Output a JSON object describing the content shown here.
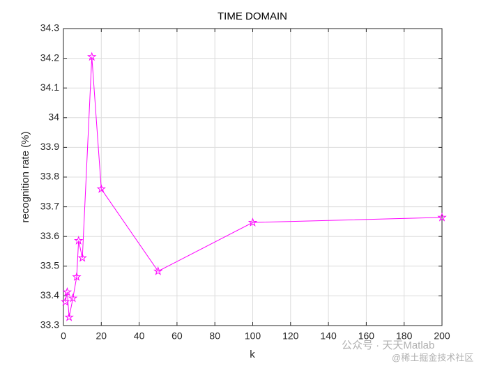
{
  "chart_data": {
    "type": "line",
    "title": "TIME DOMAIN",
    "xlabel": "k",
    "ylabel": "recognition rate (%)",
    "x": [
      1,
      2,
      3,
      5,
      7,
      8,
      10,
      15,
      20,
      50,
      100,
      200
    ],
    "series": [
      {
        "name": "recognition rate",
        "color": "#ff00ff",
        "marker": "pentagram",
        "values": [
          33.38,
          33.413,
          33.328,
          33.392,
          33.464,
          33.586,
          33.528,
          34.205,
          33.76,
          33.483,
          33.647,
          33.664
        ]
      }
    ],
    "xlim": [
      0,
      200
    ],
    "xticks": [
      0,
      20,
      40,
      60,
      80,
      100,
      120,
      140,
      160,
      180,
      200
    ],
    "ylim": [
      33.3,
      34.3
    ],
    "yticks": [
      33.3,
      33.4,
      33.5,
      33.6,
      33.7,
      33.8,
      33.9,
      34,
      34.1,
      34.2,
      34.3
    ],
    "grid": true,
    "watermarks": [
      "公众号 · 天天Matlab",
      "@稀土掘金技术社区"
    ]
  }
}
